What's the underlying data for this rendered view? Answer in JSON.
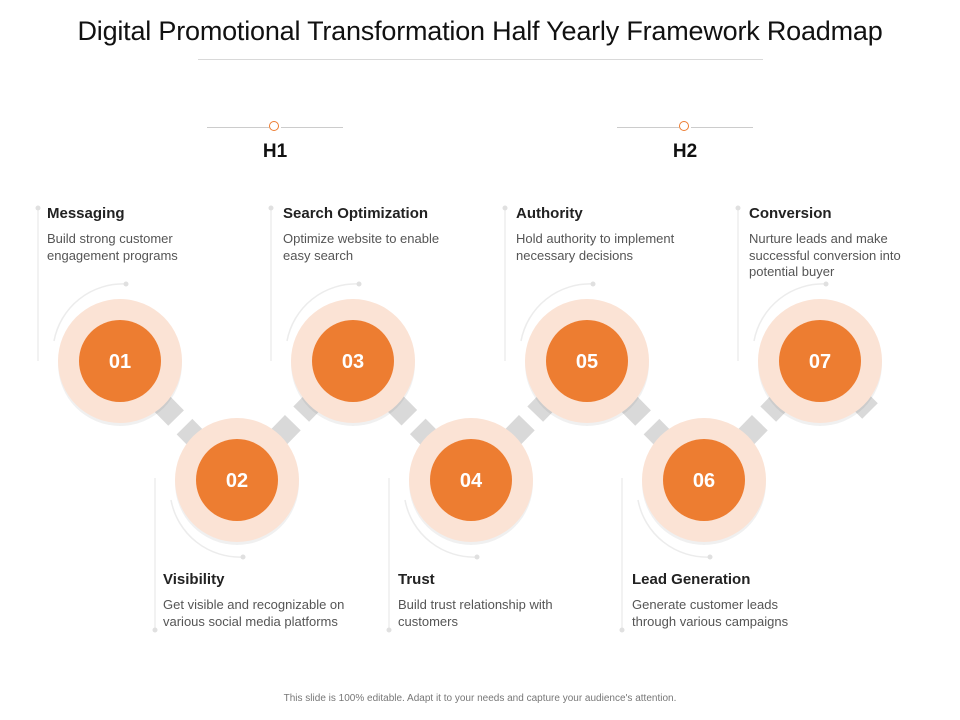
{
  "title": "Digital Promotional Transformation Half Yearly Framework Roadmap",
  "periods": [
    {
      "label": "H1"
    },
    {
      "label": "H2"
    }
  ],
  "steps": [
    {
      "number": "01",
      "heading": "Messaging",
      "description": "Build strong customer engagement programs"
    },
    {
      "number": "02",
      "heading": "Visibility",
      "description": "Get visible and recognizable on various social media platforms"
    },
    {
      "number": "03",
      "heading": "Search Optimization",
      "description": "Optimize website to enable easy search"
    },
    {
      "number": "04",
      "heading": "Trust",
      "description": "Build trust relationship with customers"
    },
    {
      "number": "05",
      "heading": "Authority",
      "description": "Hold authority to implement necessary decisions"
    },
    {
      "number": "06",
      "heading": "Lead Generation",
      "description": "Generate customer leads through various campaigns"
    },
    {
      "number": "07",
      "heading": "Conversion",
      "description": "Nurture leads and make successful conversion into potential buyer"
    }
  ],
  "footer": "This slide is 100% editable. Adapt it to your needs and capture your audience's attention.",
  "colors": {
    "accent": "#ed7d31",
    "ring": "#fbe3d5",
    "connector": "#d9d9d9",
    "guide": "#e6e6e6"
  }
}
